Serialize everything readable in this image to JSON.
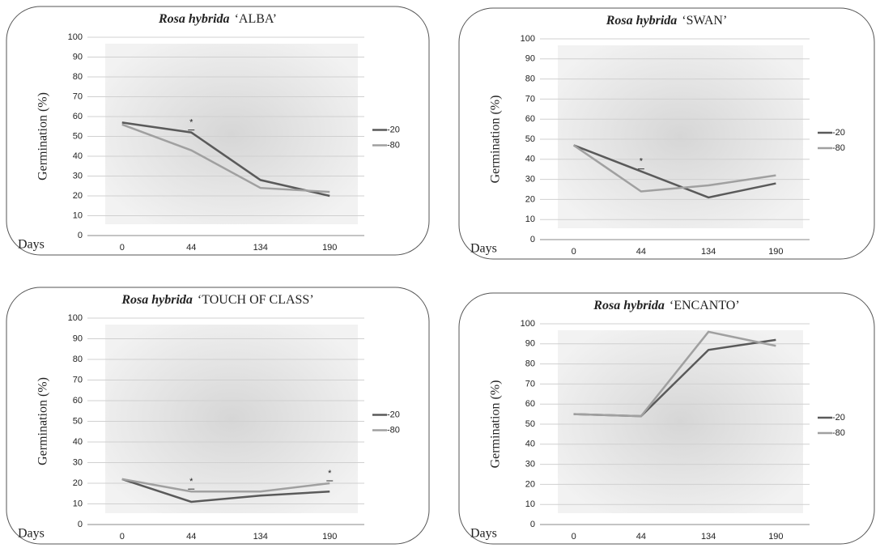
{
  "chart_data": [
    {
      "type": "line",
      "title_species": "Rosa hybrida",
      "title_cultivar": "‘ALBA’",
      "y_label": "Germination  (%)",
      "x_label": "Days",
      "categories": [
        "0",
        "44",
        "134",
        "190"
      ],
      "ylim": [
        0,
        100
      ],
      "yticks": [
        0,
        10,
        20,
        30,
        40,
        50,
        60,
        70,
        80,
        90,
        100
      ],
      "grid": true,
      "legend": "right",
      "series": [
        {
          "name": "-20",
          "color": "#5a5a5a",
          "values": [
            57,
            52,
            28,
            20
          ]
        },
        {
          "name": "-80",
          "color": "#a0a0a0",
          "values": [
            56,
            43,
            24,
            22
          ]
        }
      ],
      "annotations": [
        {
          "text": "*",
          "category": "44"
        }
      ]
    },
    {
      "type": "line",
      "title_species": "Rosa hybrida",
      "title_cultivar": "‘SWAN’",
      "y_label": "Germination  (%)",
      "x_label": "Days",
      "categories": [
        "0",
        "44",
        "134",
        "190"
      ],
      "ylim": [
        0,
        100
      ],
      "yticks": [
        0,
        10,
        20,
        30,
        40,
        50,
        60,
        70,
        80,
        90,
        100
      ],
      "grid": true,
      "legend": "right",
      "series": [
        {
          "name": "-20",
          "color": "#5a5a5a",
          "values": [
            47,
            34,
            21,
            28
          ]
        },
        {
          "name": "-80",
          "color": "#a0a0a0",
          "values": [
            47,
            24,
            27,
            32
          ]
        }
      ],
      "annotations": [
        {
          "text": "*",
          "category": "44"
        }
      ]
    },
    {
      "type": "line",
      "title_species": "Rosa hybrida",
      "title_cultivar": "‘TOUCH OF CLASS’",
      "y_label": "Germination (%)",
      "x_label": "Days",
      "categories": [
        "0",
        "44",
        "134",
        "190"
      ],
      "ylim": [
        0,
        100
      ],
      "yticks": [
        0,
        10,
        20,
        30,
        40,
        50,
        60,
        70,
        80,
        90,
        100
      ],
      "grid": true,
      "legend": "right",
      "series": [
        {
          "name": "-20",
          "color": "#5a5a5a",
          "values": [
            22,
            11,
            14,
            16
          ]
        },
        {
          "name": "-80",
          "color": "#a0a0a0",
          "values": [
            22,
            16,
            16,
            20
          ]
        }
      ],
      "annotations": [
        {
          "text": "*",
          "category": "44"
        },
        {
          "text": "*",
          "category": "190"
        }
      ]
    },
    {
      "type": "line",
      "title_species": "Rosa hybrida",
      "title_cultivar": "‘ENCANTO’",
      "y_label": "Germination (%)",
      "x_label": "Days",
      "categories": [
        "0",
        "44",
        "134",
        "190"
      ],
      "ylim": [
        0,
        100
      ],
      "yticks": [
        0,
        10,
        20,
        30,
        40,
        50,
        60,
        70,
        80,
        90,
        100
      ],
      "grid": true,
      "legend": "right",
      "series": [
        {
          "name": "-20",
          "color": "#5a5a5a",
          "values": [
            55,
            54,
            87,
            92
          ]
        },
        {
          "name": "-80",
          "color": "#a0a0a0",
          "values": [
            55,
            54,
            96,
            89
          ]
        }
      ],
      "annotations": []
    }
  ]
}
